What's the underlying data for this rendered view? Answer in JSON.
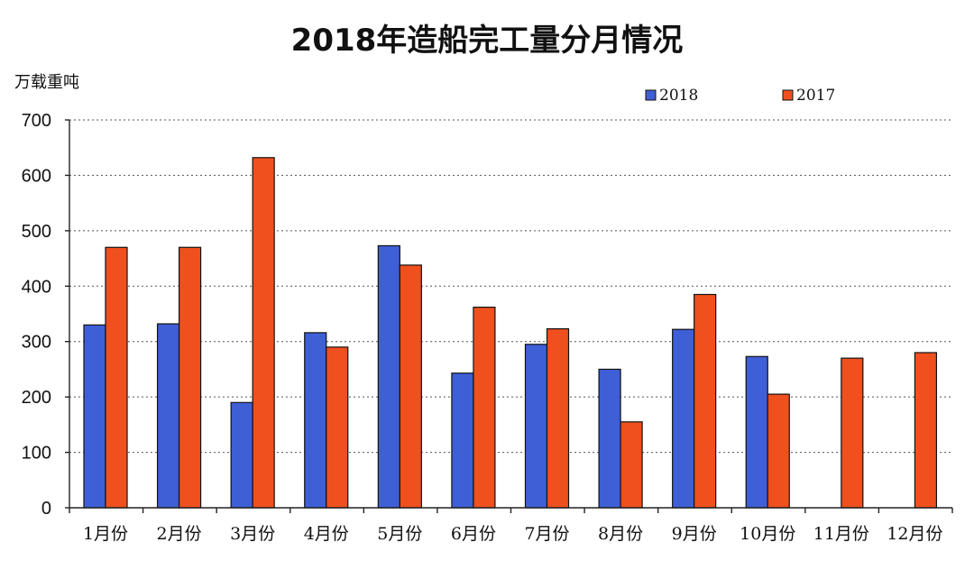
{
  "chart_data": {
    "type": "bar",
    "title": "2018年造船完工量分月情况",
    "ylabel": "万载重吨",
    "xlabel": "",
    "ylim": [
      0,
      700
    ],
    "yticks": [
      0,
      100,
      200,
      300,
      400,
      500,
      600,
      700
    ],
    "grid": true,
    "legend_position": "top-right",
    "categories": [
      "1月份",
      "2月份",
      "3月份",
      "4月份",
      "5月份",
      "6月份",
      "7月份",
      "8月份",
      "9月份",
      "10月份",
      "11月份",
      "12月份"
    ],
    "series": [
      {
        "name": "2018",
        "color": "#3f5fd6",
        "values": [
          330,
          332,
          190,
          316,
          473,
          243,
          295,
          250,
          322,
          273,
          null,
          null
        ]
      },
      {
        "name": "2017",
        "color": "#f0501e",
        "values": [
          470,
          470,
          632,
          290,
          438,
          362,
          323,
          155,
          385,
          205,
          270,
          280
        ]
      }
    ]
  }
}
